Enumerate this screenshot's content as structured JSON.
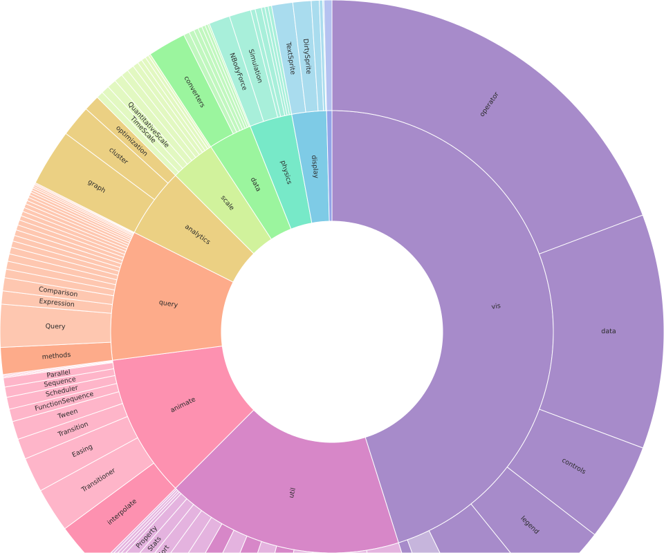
{
  "chart_data": {
    "type": "sunburst",
    "title": "",
    "children": [
      {
        "label": "vis",
        "color": "#a78bca",
        "light": "#c6b5dc",
        "children": [
          {
            "label": "operator",
            "value": 69.4,
            "kind": "dark"
          },
          {
            "label": "data",
            "value": 41.1,
            "kind": "dark"
          },
          {
            "label": "controls",
            "value": 17.2,
            "kind": "dark"
          },
          {
            "label": "legend",
            "value": 13.4,
            "kind": "dark"
          },
          {
            "label": "",
            "value": 12.9,
            "kind": "dark"
          },
          {
            "label": "",
            "value": 6.1,
            "kind": "light"
          },
          {
            "label": "",
            "value": 2.4,
            "kind": "dark"
          }
        ]
      },
      {
        "label": "util",
        "color": "#d787c8",
        "light": "#e4b3df",
        "children": [
          {
            "label": "",
            "value": 8.5,
            "kind": "light"
          },
          {
            "label": "",
            "value": 14.0,
            "kind": "light"
          },
          {
            "label": "",
            "value": 4.9,
            "kind": "light"
          },
          {
            "label": "",
            "value": 4.6,
            "kind": "dark"
          },
          {
            "label": "",
            "value": 4.1,
            "kind": "light"
          },
          {
            "label": "",
            "value": 4.0,
            "kind": "dark"
          },
          {
            "label": "",
            "value": 3.7,
            "kind": "light"
          },
          {
            "label": "",
            "value": 3.5,
            "kind": "dark"
          },
          {
            "label": "",
            "value": 3.2,
            "kind": "light"
          },
          {
            "label": "",
            "value": 3.1,
            "kind": "light"
          },
          {
            "label": "Sort",
            "value": 2.6,
            "kind": "light"
          },
          {
            "label": "Stats",
            "value": 2.3,
            "kind": "light"
          },
          {
            "label": "Property",
            "value": 2.0,
            "kind": "light"
          },
          {
            "label": "",
            "value": 0.6,
            "kind": "light"
          },
          {
            "label": "",
            "value": 0.5,
            "kind": "light"
          },
          {
            "label": "",
            "value": 0.5,
            "kind": "light"
          },
          {
            "label": "",
            "value": 0.4,
            "kind": "light"
          }
        ]
      },
      {
        "label": "animate",
        "color": "#fd91b0",
        "light": "#feb5c9",
        "children": [
          {
            "label": "interpolate",
            "value": 8.6,
            "kind": "dark"
          },
          {
            "label": "Transitioner",
            "value": 7.8,
            "kind": "light"
          },
          {
            "label": "Easing",
            "value": 6.1,
            "kind": "light"
          },
          {
            "label": "Transition",
            "value": 3.6,
            "kind": "light"
          },
          {
            "label": "Tween",
            "value": 3.2,
            "kind": "light"
          },
          {
            "label": "FunctionSequence",
            "value": 2.2,
            "kind": "light"
          },
          {
            "label": "Scheduler",
            "value": 2.1,
            "kind": "light"
          },
          {
            "label": "Sequence",
            "value": 1.8,
            "kind": "light"
          },
          {
            "label": "Parallel",
            "value": 1.6,
            "kind": "light"
          },
          {
            "label": "",
            "value": 0.2,
            "kind": "light"
          },
          {
            "label": "",
            "value": 0.2,
            "kind": "light"
          },
          {
            "label": "",
            "value": 0.2,
            "kind": "light"
          }
        ]
      },
      {
        "label": "query",
        "color": "#fdab8a",
        "light": "#fec7b0",
        "children": [
          {
            "label": "methods",
            "value": 4.7,
            "kind": "dark"
          },
          {
            "label": "Query",
            "value": 7.5,
            "kind": "light"
          },
          {
            "label": "Expression",
            "value": 2.3,
            "kind": "light"
          },
          {
            "label": "Comparison",
            "value": 2.3,
            "kind": "light"
          },
          {
            "label": "",
            "value": 1.5,
            "kind": "light"
          },
          {
            "label": "",
            "value": 1.4,
            "kind": "light"
          },
          {
            "label": "",
            "value": 1.3,
            "kind": "light"
          },
          {
            "label": "",
            "value": 1.2,
            "kind": "light"
          },
          {
            "label": "",
            "value": 1.1,
            "kind": "light"
          },
          {
            "label": "",
            "value": 1.0,
            "kind": "light"
          },
          {
            "label": "",
            "value": 1.0,
            "kind": "light"
          },
          {
            "label": "",
            "value": 0.9,
            "kind": "light"
          },
          {
            "label": "",
            "value": 0.9,
            "kind": "light"
          },
          {
            "label": "",
            "value": 0.8,
            "kind": "light"
          },
          {
            "label": "",
            "value": 0.8,
            "kind": "light"
          },
          {
            "label": "",
            "value": 0.7,
            "kind": "light"
          },
          {
            "label": "",
            "value": 0.7,
            "kind": "light"
          },
          {
            "label": "",
            "value": 0.6,
            "kind": "light"
          },
          {
            "label": "",
            "value": 0.6,
            "kind": "light"
          },
          {
            "label": "",
            "value": 0.5,
            "kind": "light"
          },
          {
            "label": "",
            "value": 0.5,
            "kind": "light"
          },
          {
            "label": "",
            "value": 0.4,
            "kind": "light"
          },
          {
            "label": "",
            "value": 0.4,
            "kind": "light"
          },
          {
            "label": "",
            "value": 0.3,
            "kind": "light"
          },
          {
            "label": "",
            "value": 0.3,
            "kind": "light"
          },
          {
            "label": "",
            "value": 0.2,
            "kind": "light"
          },
          {
            "label": "",
            "value": 0.2,
            "kind": "light"
          }
        ]
      },
      {
        "label": "analytics",
        "color": "#ebd083",
        "light": "#f1dea6",
        "children": [
          {
            "label": "graph",
            "value": 10.0,
            "kind": "dark"
          },
          {
            "label": "cluster",
            "value": 5.5,
            "kind": "dark"
          },
          {
            "label": "optimization",
            "value": 2.8,
            "kind": "dark"
          }
        ]
      },
      {
        "label": "scale",
        "color": "#d1f29c",
        "light": "#e2f8c1",
        "children": [
          {
            "label": "",
            "value": 1.2,
            "kind": "light"
          },
          {
            "label": "TimeScale",
            "value": 1.4,
            "kind": "light"
          },
          {
            "label": "QuantitativeScale",
            "value": 1.6,
            "kind": "light"
          },
          {
            "label": "",
            "value": 1.5,
            "kind": "light"
          },
          {
            "label": "",
            "value": 1.3,
            "kind": "light"
          },
          {
            "label": "",
            "value": 1.2,
            "kind": "light"
          },
          {
            "label": "",
            "value": 1.0,
            "kind": "light"
          },
          {
            "label": "",
            "value": 0.8,
            "kind": "light"
          },
          {
            "label": "",
            "value": 0.8,
            "kind": "light"
          },
          {
            "label": "",
            "value": 0.6,
            "kind": "light"
          },
          {
            "label": "",
            "value": 0.4,
            "kind": "light"
          }
        ]
      },
      {
        "label": "data",
        "color": "#9bf59e",
        "light": "#c1f7bf",
        "children": [
          {
            "label": "converters",
            "value": 6.7,
            "kind": "dark"
          },
          {
            "label": "",
            "value": 1.0,
            "kind": "light"
          },
          {
            "label": "",
            "value": 0.9,
            "kind": "light"
          },
          {
            "label": "",
            "value": 0.8,
            "kind": "light"
          },
          {
            "label": "",
            "value": 0.7,
            "kind": "light"
          },
          {
            "label": "",
            "value": 0.6,
            "kind": "light"
          },
          {
            "label": "",
            "value": 0.5,
            "kind": "light"
          },
          {
            "label": "",
            "value": 0.3,
            "kind": "light"
          }
        ]
      },
      {
        "label": "physics",
        "color": "#77e9c8",
        "light": "#a8efda",
        "children": [
          {
            "label": "NBodyForce",
            "value": 3.7,
            "kind": "light"
          },
          {
            "label": "Simulation",
            "value": 3.8,
            "kind": "light"
          },
          {
            "label": "",
            "value": 0.8,
            "kind": "light"
          },
          {
            "label": "",
            "value": 1.1,
            "kind": "light"
          },
          {
            "label": "",
            "value": 0.6,
            "kind": "light"
          },
          {
            "label": "",
            "value": 0.6,
            "kind": "light"
          },
          {
            "label": "",
            "value": 0.6,
            "kind": "light"
          }
        ]
      },
      {
        "label": "display",
        "color": "#7ecbe6",
        "light": "#a9dcee",
        "children": [
          {
            "label": "TextSprite",
            "value": 3.7,
            "kind": "light"
          },
          {
            "label": "DirtySprite",
            "value": 3.2,
            "kind": "light"
          },
          {
            "label": "",
            "value": 1.4,
            "kind": "light"
          },
          {
            "label": "",
            "value": 0.6,
            "kind": "light"
          },
          {
            "label": "",
            "value": 0.2,
            "kind": "light"
          }
        ]
      },
      {
        "label": "",
        "color": "#93a4e8",
        "light": "#b5c2f0",
        "children": [
          {
            "label": "",
            "value": 1.4,
            "kind": "light"
          }
        ]
      }
    ]
  }
}
